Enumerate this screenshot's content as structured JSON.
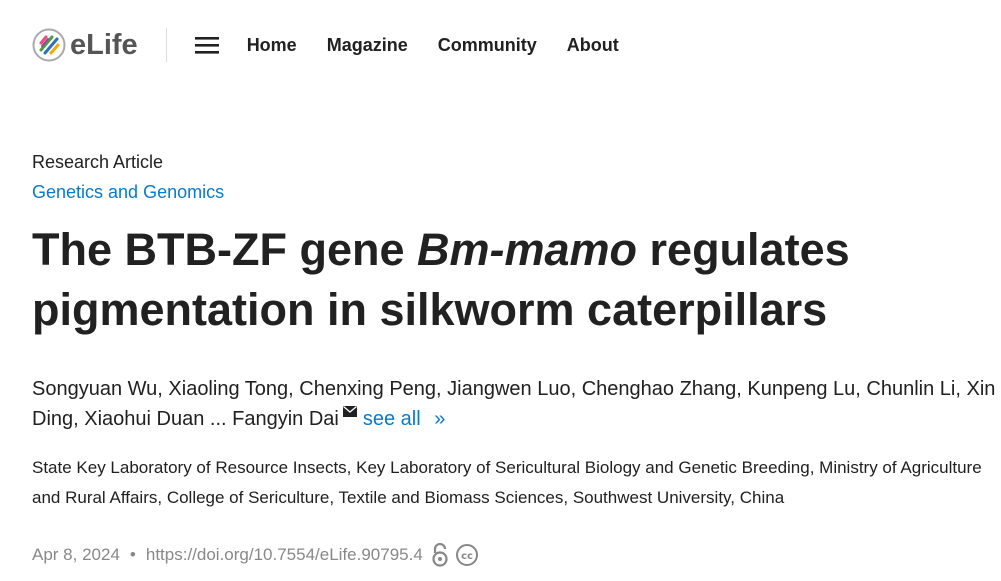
{
  "header": {
    "logo": "eLife",
    "nav": [
      "Home",
      "Magazine",
      "Community",
      "About"
    ]
  },
  "article": {
    "type": "Research Article",
    "subject": "Genetics and Genomics",
    "title": {
      "before": "The BTB-ZF gene ",
      "italic": "Bm-mamo",
      "after": " regulates pigmentation in silkworm caterpillars"
    },
    "authors": [
      "Songyuan Wu,",
      "Xiaoling Tong,",
      "Chenxing Peng,",
      "Jiangwen Luo,",
      "Chenghao Zhang,",
      "Kunpeng Lu,",
      "Chunlin Li,",
      "Xin Ding,",
      "Xiaohui Duan",
      "...",
      "Fangyin Dai"
    ],
    "see_all": "see all",
    "see_all_arrow": "»",
    "affiliation": "State Key Laboratory of Resource Insects, Key Laboratory of Sericultural Biology and Genetic Breeding, Ministry of Agriculture and Rural Affairs, College of Sericulture, Textile and Biomass Sciences, Southwest University, China",
    "date": "Apr 8, 2024",
    "doi": "https://doi.org/10.7554/eLife.90795.4"
  }
}
